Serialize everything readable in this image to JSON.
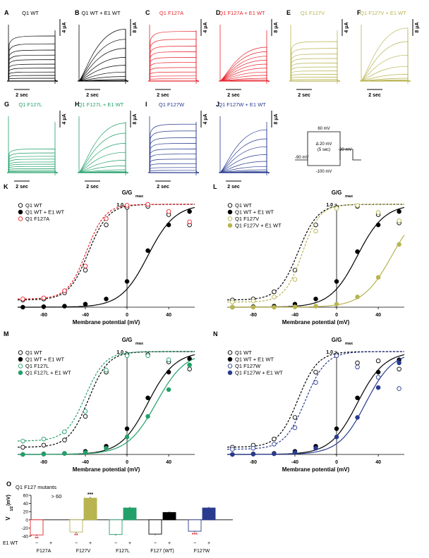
{
  "colors": {
    "wt": "#000000",
    "F127A": "#e8242c",
    "F127V": "#b8b450",
    "F127L": "#22a069",
    "F127W": "#283b8f"
  },
  "current_panels": [
    {
      "letter": "A",
      "title": "Q1 WT",
      "color": "wt",
      "scale_label": "4 μA",
      "time_label": "2 sec",
      "kind": "fast",
      "tops": [
        0.8,
        0.66,
        0.55,
        0.46,
        0.38,
        0.3,
        0.23,
        0.16,
        0.1,
        0.05
      ]
    },
    {
      "letter": "B",
      "title": "Q1 WT + E1 WT",
      "color": "wt",
      "scale_label": "8 μA",
      "time_label": "2 sec",
      "kind": "slow",
      "tops": [
        0.92,
        0.74,
        0.58,
        0.42,
        0.28,
        0.16,
        0.08,
        0.03,
        0.01,
        0.0
      ]
    },
    {
      "letter": "C",
      "title": "Q1 F127A",
      "color": "F127A",
      "scale_label": "4 μA",
      "time_label": "2 sec",
      "kind": "fast",
      "tops": [
        0.88,
        0.74,
        0.62,
        0.52,
        0.42,
        0.33,
        0.24,
        0.16,
        0.09,
        0.04
      ]
    },
    {
      "letter": "D",
      "title": "Q1 F127A + E1 WT",
      "color": "F127A",
      "scale_label": "8 μA",
      "time_label": "2 sec",
      "kind": "slow",
      "tops": [
        0.6,
        0.52,
        0.44,
        0.37,
        0.3,
        0.23,
        0.16,
        0.1,
        0.05,
        0.02
      ]
    },
    {
      "letter": "E",
      "title": "Q1 F127V",
      "color": "F127V",
      "scale_label": "4 μA",
      "time_label": "2 sec",
      "kind": "fast",
      "tops": [
        0.7,
        0.58,
        0.48,
        0.4,
        0.32,
        0.25,
        0.18,
        0.12,
        0.07,
        0.03
      ]
    },
    {
      "letter": "F",
      "title": "Q1 F127V + E1 WT",
      "color": "F127V",
      "scale_label": "8 μA",
      "time_label": "2 sec",
      "kind": "slow",
      "tops": [
        0.94,
        0.7,
        0.46,
        0.26,
        0.12,
        0.05,
        0.02,
        0.01,
        0.0,
        0.0
      ]
    },
    {
      "letter": "G",
      "title": "Q1 F127L",
      "color": "F127L",
      "scale_label": "4 μA",
      "time_label": "2 sec",
      "kind": "fast",
      "tops": [
        0.42,
        0.35,
        0.29,
        0.24,
        0.19,
        0.15,
        0.11,
        0.07,
        0.04,
        0.02
      ]
    },
    {
      "letter": "H",
      "title": "Q1 F127L + E1 WT",
      "color": "F127L",
      "scale_label": "8 μA",
      "time_label": "2 sec",
      "kind": "slow",
      "tops": [
        0.88,
        0.7,
        0.52,
        0.36,
        0.22,
        0.12,
        0.05,
        0.02,
        0.01,
        0.0
      ]
    },
    {
      "letter": "I",
      "title": "Q1 F127W",
      "color": "F127W",
      "scale_label": "4 μA",
      "time_label": "2 sec",
      "kind": "fast",
      "tops": [
        0.86,
        0.74,
        0.62,
        0.52,
        0.42,
        0.33,
        0.24,
        0.16,
        0.09,
        0.04
      ]
    },
    {
      "letter": "J",
      "title": "Q1 F127W + E1 WT",
      "color": "F127W",
      "scale_label": "8 μA",
      "time_label": "2 sec",
      "kind": "slow",
      "tops": [
        0.76,
        0.6,
        0.46,
        0.32,
        0.2,
        0.11,
        0.05,
        0.02,
        0.01,
        0.0
      ]
    }
  ],
  "protocol": {
    "top_label": "60 mV",
    "step_label": "Δ 20 mV",
    "duration_label": "(5 sec)",
    "holding_label": "-90 mV",
    "tail_label": "-30 mV",
    "bottom_label": "-100 mV"
  },
  "chart_data": [
    {
      "panel": "K",
      "type": "scatter",
      "ylabel": "G/G",
      "ylabel_sub": "max",
      "xlabel": "Membrane potential (mV)",
      "xlim": [
        -105,
        65
      ],
      "ylim": [
        0,
        1.0
      ],
      "x_ticks": [
        -80,
        -40,
        0,
        40
      ],
      "y_ticks": [
        0,
        1.0
      ],
      "y_tick_labels": [
        "",
        "1.0"
      ],
      "legend_position": "top-left",
      "x": [
        -100,
        -80,
        -60,
        -40,
        -20,
        0,
        20,
        40,
        60
      ],
      "series": [
        {
          "name": "Q1 WT",
          "color": "wt",
          "marker": "open",
          "fit": "dashed",
          "v_half": -37,
          "slope": 9.5,
          "base": 0.07,
          "values": [
            0.07,
            0.08,
            0.14,
            0.36,
            0.8,
            0.97,
            0.98,
            0.9,
            0.8
          ]
        },
        {
          "name": "Q1 WT + E1 WT",
          "color": "wt",
          "marker": "filled",
          "fit": "solid",
          "v_half": 20,
          "slope": 13,
          "base": 0.0,
          "values": [
            0.0,
            0.005,
            0.01,
            0.03,
            0.08,
            0.25,
            0.55,
            0.8,
            0.93
          ]
        },
        {
          "name": "Q1 F127A",
          "color": "F127A",
          "marker": "open",
          "fit": "dashed",
          "v_half": -39,
          "slope": 9,
          "base": 0.08,
          "values": [
            0.08,
            0.09,
            0.16,
            0.4,
            0.86,
            0.99,
            1.0,
            0.93,
            0.83
          ]
        }
      ]
    },
    {
      "panel": "L",
      "type": "scatter",
      "ylabel": "G/G",
      "ylabel_sub": "max",
      "xlabel": "Membrane potential (mV)",
      "xlim": [
        -105,
        65
      ],
      "ylim": [
        0,
        1.0
      ],
      "x_ticks": [
        -80,
        -40,
        0,
        40
      ],
      "y_ticks": [
        0,
        1.0
      ],
      "y_tick_labels": [
        "",
        "1.0"
      ],
      "legend_position": "top-left",
      "x": [
        -100,
        -80,
        -60,
        -40,
        -20,
        0,
        20,
        40,
        60
      ],
      "series": [
        {
          "name": "Q1 WT",
          "color": "wt",
          "marker": "open",
          "fit": "dashed",
          "v_half": -37,
          "slope": 9.5,
          "base": 0.07,
          "values": [
            0.07,
            0.08,
            0.15,
            0.36,
            0.8,
            0.97,
            0.98,
            0.9,
            0.82
          ]
        },
        {
          "name": "Q1 WT + E1 WT",
          "color": "wt",
          "marker": "filled",
          "fit": "solid",
          "v_half": 20,
          "slope": 13,
          "base": 0.0,
          "values": [
            0.0,
            0.005,
            0.01,
            0.03,
            0.08,
            0.25,
            0.54,
            0.8,
            0.93
          ]
        },
        {
          "name": "Q1 F127V",
          "color": "F127V",
          "marker": "open",
          "fit": "dashed",
          "v_half": -33,
          "slope": 8.5,
          "base": 0.05,
          "values": [
            0.05,
            0.06,
            0.1,
            0.27,
            0.74,
            0.96,
            0.99,
            0.92,
            0.84
          ]
        },
        {
          "name": "Q1 F127V + E1 WT",
          "color": "F127V",
          "marker": "filled",
          "fit": "solid",
          "v_half": 53,
          "slope": 14,
          "base": 0.0,
          "values": [
            0.0,
            0.0,
            0.0,
            0.003,
            0.01,
            0.03,
            0.1,
            0.29,
            0.61
          ]
        }
      ]
    },
    {
      "panel": "M",
      "type": "scatter",
      "ylabel": "G/G",
      "ylabel_sub": "max",
      "xlabel": "Membrane potential (mV)",
      "xlim": [
        -105,
        65
      ],
      "ylim": [
        0,
        1.0
      ],
      "x_ticks": [
        -80,
        -40,
        0,
        40
      ],
      "y_ticks": [
        0,
        1.0
      ],
      "y_tick_labels": [
        "",
        "1.0"
      ],
      "legend_position": "top-left",
      "x": [
        -100,
        -80,
        -60,
        -40,
        -20,
        0,
        20,
        40,
        60
      ],
      "series": [
        {
          "name": "Q1 WT",
          "color": "wt",
          "marker": "open",
          "fit": "dashed",
          "v_half": -37,
          "slope": 9.5,
          "base": 0.07,
          "values": [
            0.07,
            0.09,
            0.14,
            0.37,
            0.8,
            0.97,
            0.97,
            0.9,
            0.83
          ]
        },
        {
          "name": "Q1 WT + E1 WT",
          "color": "wt",
          "marker": "filled",
          "fit": "solid",
          "v_half": 20,
          "slope": 13,
          "base": 0.0,
          "values": [
            0.0,
            0.005,
            0.01,
            0.03,
            0.08,
            0.25,
            0.55,
            0.8,
            0.93
          ]
        },
        {
          "name": "Q1 F127L",
          "color": "F127L",
          "marker": "open",
          "fit": "dashed",
          "v_half": -40,
          "slope": 9.5,
          "base": 0.13,
          "values": [
            0.13,
            0.15,
            0.22,
            0.42,
            0.82,
            0.96,
            0.96,
            0.92,
            0.87
          ]
        },
        {
          "name": "Q1 F127L + E1 WT",
          "color": "F127L",
          "marker": "filled",
          "fit": "solid",
          "v_half": 28,
          "slope": 14,
          "base": 0.0,
          "values": [
            0.0,
            0.003,
            0.01,
            0.02,
            0.06,
            0.17,
            0.37,
            0.63,
            0.87
          ]
        }
      ]
    },
    {
      "panel": "N",
      "type": "scatter",
      "ylabel": "G/G",
      "ylabel_sub": "max",
      "xlabel": "Membrane potential (mV)",
      "xlim": [
        -105,
        65
      ],
      "ylim": [
        0,
        1.0
      ],
      "x_ticks": [
        -80,
        -40,
        0,
        40
      ],
      "y_ticks": [
        0,
        1.0
      ],
      "y_tick_labels": [
        "",
        "1.0"
      ],
      "legend_position": "top-left",
      "x": [
        -100,
        -80,
        -60,
        -40,
        -20,
        0,
        20,
        40,
        60
      ],
      "series": [
        {
          "name": "Q1 WT",
          "color": "wt",
          "marker": "open",
          "fit": "dashed",
          "v_half": -37,
          "slope": 9.5,
          "base": 0.07,
          "values": [
            0.07,
            0.09,
            0.15,
            0.36,
            0.8,
            0.97,
            0.89,
            0.91,
            0.83
          ]
        },
        {
          "name": "Q1 WT + E1 WT",
          "color": "wt",
          "marker": "filled",
          "fit": "solid",
          "v_half": 20,
          "slope": 13,
          "base": 0.0,
          "values": [
            0.0,
            0.005,
            0.01,
            0.03,
            0.08,
            0.25,
            0.55,
            0.8,
            0.92
          ]
        },
        {
          "name": "Q1 F127W",
          "color": "F127W",
          "marker": "open",
          "fit": "dashed",
          "v_half": -30,
          "slope": 10,
          "base": 0.05,
          "values": [
            0.05,
            0.06,
            0.1,
            0.26,
            0.7,
            0.96,
            0.85,
            0.75,
            0.64
          ]
        },
        {
          "name": "Q1 F127W + E1 WT",
          "color": "F127W",
          "marker": "filled",
          "fit": "solid",
          "v_half": 28,
          "slope": 13,
          "base": 0.0,
          "values": [
            0.0,
            0.003,
            0.006,
            0.02,
            0.06,
            0.17,
            0.36,
            0.65,
            0.89
          ]
        }
      ]
    },
    {
      "panel": "O",
      "type": "bar",
      "title": "Q1 F127 mutants",
      "ylabel": "V",
      "ylabel_sub": "1/2",
      "ylabel_unit": "(mV)",
      "ylim": [
        -40,
        60
      ],
      "y_ticks": [
        60,
        40,
        20,
        0,
        -20,
        -40
      ],
      "row_label": "E1 WT",
      "groups": [
        {
          "name": "F127A",
          "color": "F127A",
          "bars": [
            {
              "e1": "−",
              "value": -37,
              "style": "open",
              "sig": "**",
              "sig_color": "#e8242c"
            },
            {
              "e1": "+",
              "value": null,
              "style": "none",
              "note": "> 60"
            }
          ]
        },
        {
          "name": "F127V",
          "color": "F127V",
          "bars": [
            {
              "e1": "−",
              "value": -30,
              "style": "open",
              "sig": "**",
              "sig_color": "#e8242c"
            },
            {
              "e1": "+",
              "value": 53,
              "style": "filled",
              "sig": "***",
              "sig_color": "#000000"
            }
          ]
        },
        {
          "name": "F127L",
          "color": "F127L",
          "bars": [
            {
              "e1": "−",
              "value": -36,
              "style": "open"
            },
            {
              "e1": "+",
              "value": 29,
              "style": "filled"
            }
          ]
        },
        {
          "name": "F127 (WT)",
          "color": "wt",
          "bars": [
            {
              "e1": "−",
              "value": -35,
              "style": "open"
            },
            {
              "e1": "+",
              "value": 18,
              "style": "filled"
            }
          ]
        },
        {
          "name": "F127W",
          "color": "F127W",
          "bars": [
            {
              "e1": "−",
              "value": -28,
              "style": "open",
              "sig": "***",
              "sig_color": "#e8242c"
            },
            {
              "e1": "+",
              "value": 29,
              "style": "filled"
            }
          ]
        }
      ]
    }
  ]
}
